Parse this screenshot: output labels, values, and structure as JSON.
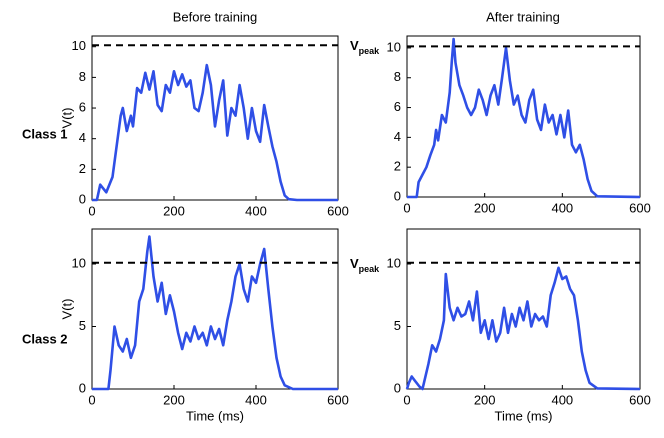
{
  "column_titles": [
    "Before training",
    "After training"
  ],
  "row_labels": [
    "Class 1",
    "Class 2"
  ],
  "threshold_label": {
    "main": "V",
    "sub": "peak"
  },
  "chart_data": [
    {
      "type": "line",
      "ylabel": "V(t)",
      "color": "#2f4fe6",
      "threshold": 10.1,
      "xlim": [
        0,
        600
      ],
      "xticks": [
        0,
        200,
        400,
        600
      ],
      "ylim": [
        0,
        10.7
      ],
      "yticks": [
        0,
        2,
        4,
        6,
        8,
        10
      ],
      "x": [
        0,
        12,
        20,
        35,
        50,
        70,
        75,
        85,
        95,
        100,
        110,
        120,
        130,
        140,
        150,
        160,
        170,
        180,
        190,
        200,
        210,
        220,
        230,
        240,
        250,
        260,
        270,
        280,
        290,
        300,
        310,
        320,
        330,
        340,
        350,
        360,
        370,
        380,
        390,
        400,
        410,
        420,
        430,
        440,
        450,
        460,
        470,
        480,
        500,
        600
      ],
      "values": [
        0,
        0,
        1,
        0.5,
        1.5,
        5.5,
        6,
        4.5,
        5.5,
        4.8,
        7.3,
        7,
        8.3,
        7.2,
        8.4,
        6.2,
        5.8,
        7.5,
        7,
        8.4,
        7.5,
        8.2,
        7.4,
        7.8,
        6,
        5.8,
        7,
        8.8,
        7.5,
        4.8,
        6.5,
        7.8,
        4.2,
        6,
        5.5,
        7.5,
        6,
        4,
        6,
        4.5,
        3.8,
        6.2,
        4.8,
        3.5,
        2.5,
        1.2,
        0.3,
        0.05,
        0,
        0
      ]
    },
    {
      "type": "line",
      "color": "#2f4fe6",
      "threshold": 10.1,
      "xlim": [
        0,
        600
      ],
      "xticks": [
        0,
        200,
        400,
        600
      ],
      "ylim": [
        0,
        10.8
      ],
      "yticks": [
        0,
        2,
        4,
        6,
        8,
        10
      ],
      "x": [
        0,
        25,
        30,
        40,
        50,
        60,
        70,
        75,
        80,
        90,
        100,
        110,
        115,
        120,
        125,
        135,
        145,
        155,
        165,
        175,
        185,
        195,
        205,
        215,
        225,
        235,
        245,
        255,
        265,
        275,
        285,
        295,
        305,
        315,
        325,
        335,
        345,
        355,
        365,
        375,
        385,
        395,
        405,
        415,
        425,
        435,
        445,
        455,
        465,
        475,
        490,
        600
      ],
      "values": [
        0,
        0,
        1,
        1.5,
        2,
        2.8,
        3.5,
        4.5,
        3.8,
        5.5,
        5,
        7,
        9,
        10.6,
        9,
        7.5,
        6.8,
        6,
        5.5,
        6,
        7.2,
        6.5,
        5.5,
        6.8,
        7.5,
        6.2,
        8,
        10,
        7.8,
        6.2,
        6.8,
        5.5,
        5,
        6.5,
        7.2,
        5.2,
        4.5,
        6.2,
        5,
        5.5,
        4.2,
        5.5,
        4,
        5.8,
        3.5,
        3,
        3.5,
        2.5,
        1.2,
        0.4,
        0.05,
        0
      ]
    },
    {
      "type": "line",
      "ylabel": "V(t)",
      "xlabel": "Time (ms)",
      "color": "#2f4fe6",
      "threshold": 10.1,
      "xlim": [
        0,
        600
      ],
      "xticks": [
        0,
        200,
        400,
        600
      ],
      "ylim": [
        0,
        12.8
      ],
      "yticks": [
        0,
        5,
        10
      ],
      "x": [
        0,
        40,
        45,
        55,
        65,
        75,
        85,
        95,
        105,
        115,
        125,
        135,
        140,
        150,
        160,
        170,
        180,
        190,
        200,
        210,
        220,
        230,
        240,
        250,
        260,
        270,
        280,
        290,
        300,
        310,
        320,
        330,
        340,
        350,
        360,
        370,
        380,
        390,
        400,
        410,
        420,
        430,
        440,
        450,
        460,
        470,
        490,
        600
      ],
      "values": [
        0,
        0,
        1.5,
        5,
        3.5,
        3,
        4,
        2.5,
        3.5,
        7,
        8,
        11,
        12.2,
        9,
        7,
        8.5,
        6,
        7.5,
        6.2,
        4.5,
        3.2,
        4.5,
        3.8,
        5,
        4,
        4.5,
        3.5,
        5,
        4,
        4.8,
        3.5,
        5.5,
        7,
        9,
        10,
        8,
        7,
        9,
        8.5,
        10,
        11.2,
        8,
        5,
        2.5,
        1,
        0.3,
        0,
        0
      ]
    },
    {
      "type": "line",
      "xlabel": "Time (ms)",
      "color": "#2f4fe6",
      "threshold": 10.1,
      "xlim": [
        0,
        600
      ],
      "xticks": [
        0,
        200,
        400,
        600
      ],
      "ylim": [
        0,
        12.8
      ],
      "yticks": [
        0,
        5,
        10
      ],
      "x": [
        0,
        5,
        12,
        22,
        32,
        40,
        55,
        65,
        75,
        85,
        95,
        100,
        110,
        120,
        130,
        140,
        150,
        160,
        170,
        180,
        190,
        200,
        210,
        220,
        230,
        240,
        250,
        260,
        270,
        280,
        290,
        300,
        310,
        320,
        330,
        340,
        350,
        360,
        370,
        380,
        390,
        400,
        410,
        420,
        430,
        440,
        450,
        460,
        470,
        490,
        600
      ],
      "values": [
        0,
        0.5,
        1,
        0.6,
        0.2,
        0,
        2,
        3.5,
        3,
        4,
        5.5,
        9.2,
        6.5,
        5.5,
        6.5,
        5.8,
        6,
        7,
        5.5,
        7.8,
        4.5,
        5.5,
        4,
        5.5,
        3.8,
        4.5,
        6.5,
        4.5,
        6,
        5,
        6.5,
        5.5,
        7,
        5,
        6,
        5.5,
        5.8,
        5,
        7.5,
        8.5,
        9.7,
        8.8,
        9,
        8,
        7.5,
        5.5,
        3,
        1.5,
        0.5,
        0.05,
        0
      ]
    }
  ]
}
